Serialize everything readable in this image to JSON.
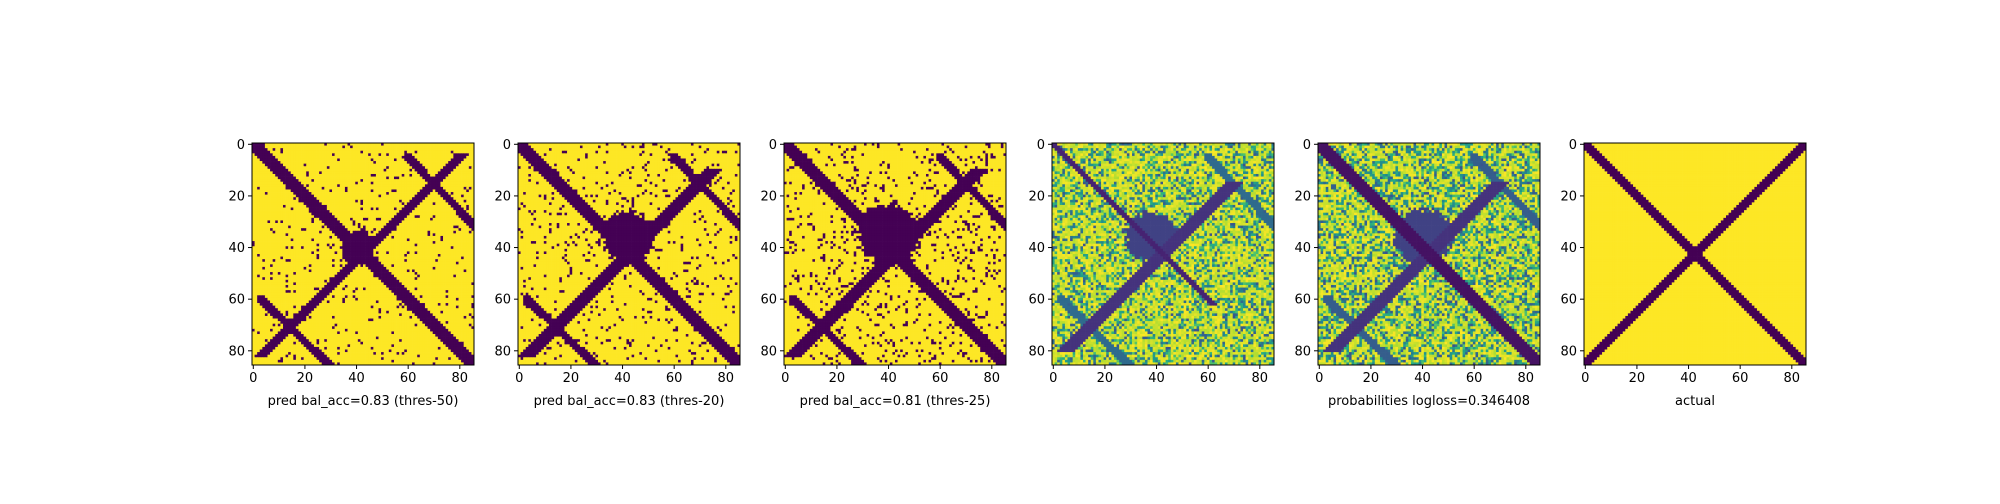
{
  "figure": {
    "colormap": "viridis",
    "colors": {
      "low": "#440154",
      "high": "#fde725",
      "frame": "#000000"
    }
  },
  "chart_data": [
    {
      "type": "heatmap",
      "panel": 1,
      "title": "",
      "xlabel": "pred bal_acc=0.83 (thres-50)",
      "ylabel": "",
      "matrix_size": 86,
      "value_range": [
        0,
        1
      ],
      "binary": true,
      "xlim": [
        0,
        86
      ],
      "ylim": [
        86,
        0
      ],
      "xticks": [
        "0",
        "20",
        "40",
        "60",
        "80"
      ],
      "yticks": [
        "0",
        "20",
        "40",
        "60",
        "80"
      ],
      "structure": {
        "main_diagonal": {
          "from": 0,
          "to": 86,
          "half_width": 2.4,
          "value": 0
        },
        "anti_diagonal": {
          "from": 4,
          "to": 82,
          "half_width": 2.0,
          "value": 0
        },
        "central_blob": {
          "center": [
            41,
            40
          ],
          "radius": 7,
          "value": 0
        },
        "off_diagonal_lines": [
          {
            "start": [
              60,
              5
            ],
            "end": [
              86,
              32
            ],
            "value": 0
          },
          {
            "start": [
              3,
              60
            ],
            "end": [
              30,
              86
            ],
            "value": 0
          }
        ],
        "noise_density": 0.05
      }
    },
    {
      "type": "heatmap",
      "panel": 2,
      "title": "",
      "xlabel": "pred bal_acc=0.83 (thres-20)",
      "ylabel": "",
      "matrix_size": 86,
      "value_range": [
        0,
        1
      ],
      "binary": true,
      "xlim": [
        0,
        86
      ],
      "ylim": [
        86,
        0
      ],
      "xticks": [
        "0",
        "20",
        "40",
        "60",
        "80"
      ],
      "yticks": [
        "0",
        "20",
        "40",
        "60",
        "80"
      ],
      "structure": {
        "main_diagonal": {
          "from": 0,
          "to": 86,
          "half_width": 2.6,
          "value": 0
        },
        "anti_diagonal": {
          "from": 10,
          "to": 82,
          "half_width": 2.2,
          "value": 0
        },
        "central_blob": {
          "center": [
            42,
            36
          ],
          "radius": 10,
          "value": 0
        },
        "off_diagonal_lines": [
          {
            "start": [
              60,
              5
            ],
            "end": [
              86,
              32
            ],
            "value": 0
          },
          {
            "start": [
              3,
              60
            ],
            "end": [
              30,
              86
            ],
            "value": 0
          }
        ],
        "noise_density": 0.08
      }
    },
    {
      "type": "heatmap",
      "panel": 3,
      "title": "",
      "xlabel": "pred bal_acc=0.81 (thres-25)",
      "ylabel": "",
      "matrix_size": 86,
      "value_range": [
        0,
        1
      ],
      "binary": true,
      "xlim": [
        0,
        86
      ],
      "ylim": [
        86,
        0
      ],
      "xticks": [
        "0",
        "20",
        "40",
        "60",
        "80"
      ],
      "yticks": [
        "0",
        "20",
        "40",
        "60",
        "80"
      ],
      "structure": {
        "main_diagonal": {
          "from": 0,
          "to": 86,
          "half_width": 2.6,
          "value": 0
        },
        "anti_diagonal": {
          "from": 10,
          "to": 82,
          "half_width": 2.2,
          "value": 0
        },
        "central_blob": {
          "center": [
            40,
            35
          ],
          "radius": 12,
          "value": 0
        },
        "off_diagonal_lines": [
          {
            "start": [
              60,
              5
            ],
            "end": [
              86,
              32
            ],
            "value": 0
          },
          {
            "start": [
              3,
              60
            ],
            "end": [
              30,
              86
            ],
            "value": 0
          }
        ],
        "noise_density": 0.11
      }
    },
    {
      "type": "heatmap",
      "panel": 4,
      "title": "",
      "xlabel": "",
      "ylabel": "",
      "matrix_size": 86,
      "value_range": [
        0,
        1
      ],
      "binary": false,
      "xlim": [
        0,
        86
      ],
      "ylim": [
        86,
        0
      ],
      "xticks": [
        "0",
        "20",
        "40",
        "60",
        "80"
      ],
      "yticks": [
        "0",
        "20",
        "40",
        "60",
        "80"
      ],
      "structure": {
        "main_diagonal": {
          "from": 0,
          "to": 62,
          "half_width": 1.2,
          "value": 0.1
        },
        "anti_diagonal": {
          "from": 15,
          "to": 80,
          "half_width": 2.5,
          "value": 0.15
        },
        "central_blob": {
          "center": [
            38,
            36
          ],
          "radius": 10,
          "value": 0.2
        },
        "off_diagonal_lines": [
          {
            "start": [
              60,
              5
            ],
            "end": [
              86,
              32
            ],
            "value": 0.35
          },
          {
            "start": [
              3,
              60
            ],
            "end": [
              30,
              86
            ],
            "value": 0.35
          }
        ],
        "noise_density": 0.35
      }
    },
    {
      "type": "heatmap",
      "panel": 5,
      "title": "",
      "xlabel": "probabilities logloss=0.346408",
      "ylabel": "",
      "matrix_size": 86,
      "value_range": [
        0,
        1
      ],
      "binary": false,
      "xlim": [
        0,
        86
      ],
      "ylim": [
        86,
        0
      ],
      "xticks": [
        "0",
        "20",
        "40",
        "60",
        "80"
      ],
      "yticks": [
        "0",
        "20",
        "40",
        "60",
        "80"
      ],
      "structure": {
        "main_diagonal": {
          "from": 0,
          "to": 86,
          "half_width": 2.2,
          "value": 0.05
        },
        "anti_diagonal": {
          "from": 15,
          "to": 80,
          "half_width": 2.5,
          "value": 0.15
        },
        "central_blob": {
          "center": [
            40,
            36
          ],
          "radius": 11,
          "value": 0.2
        },
        "off_diagonal_lines": [
          {
            "start": [
              60,
              5
            ],
            "end": [
              86,
              32
            ],
            "value": 0.3
          },
          {
            "start": [
              3,
              60
            ],
            "end": [
              30,
              86
            ],
            "value": 0.3
          }
        ],
        "noise_density": 0.4
      }
    },
    {
      "type": "heatmap",
      "panel": 6,
      "title": "",
      "xlabel": "actual",
      "ylabel": "",
      "matrix_size": 86,
      "value_range": [
        0,
        1
      ],
      "binary": true,
      "xlim": [
        0,
        86
      ],
      "ylim": [
        86,
        0
      ],
      "xticks": [
        "0",
        "20",
        "40",
        "60",
        "80"
      ],
      "yticks": [
        "0",
        "20",
        "40",
        "60",
        "80"
      ],
      "structure": {
        "main_diagonal": {
          "from": 0,
          "to": 86,
          "half_width": 2.0,
          "value": 0
        },
        "anti_diagonal": {
          "from": 0,
          "to": 86,
          "half_width": 1.8,
          "value": 0
        },
        "central_blob": null,
        "off_diagonal_lines": [],
        "noise_density": 0.0
      }
    }
  ]
}
